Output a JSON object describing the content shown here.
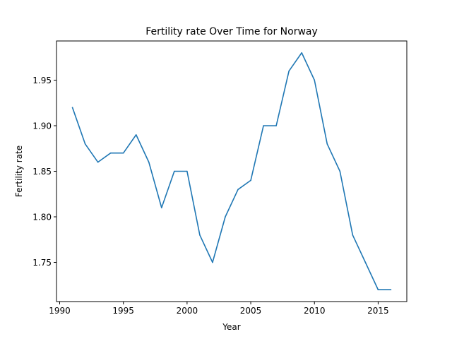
{
  "chart_data": {
    "type": "line",
    "title": "Fertility rate Over Time for Norway",
    "xlabel": "Year",
    "ylabel": "Fertility rate",
    "xlim": [
      1989.75,
      2017.25
    ],
    "ylim": [
      1.707,
      1.993
    ],
    "xticks": [
      1990,
      1995,
      2000,
      2005,
      2010,
      2015
    ],
    "xtick_labels": [
      "1990",
      "1995",
      "2000",
      "2005",
      "2010",
      "2015"
    ],
    "yticks": [
      1.75,
      1.8,
      1.85,
      1.9,
      1.95
    ],
    "ytick_labels": [
      "1.75",
      "1.80",
      "1.85",
      "1.90",
      "1.95"
    ],
    "grid": false,
    "series": [
      {
        "color": "#1f77b4",
        "x": [
          1991,
          1992,
          1993,
          1994,
          1995,
          1996,
          1997,
          1998,
          1999,
          2000,
          2001,
          2002,
          2003,
          2004,
          2005,
          2006,
          2007,
          2008,
          2009,
          2010,
          2011,
          2012,
          2013,
          2014,
          2015,
          2016
        ],
        "y": [
          1.92,
          1.88,
          1.86,
          1.87,
          1.87,
          1.89,
          1.86,
          1.81,
          1.85,
          1.85,
          1.78,
          1.75,
          1.8,
          1.83,
          1.84,
          1.9,
          1.9,
          1.96,
          1.98,
          1.95,
          1.88,
          1.85,
          1.78,
          1.75,
          1.72,
          1.72
        ]
      }
    ]
  }
}
